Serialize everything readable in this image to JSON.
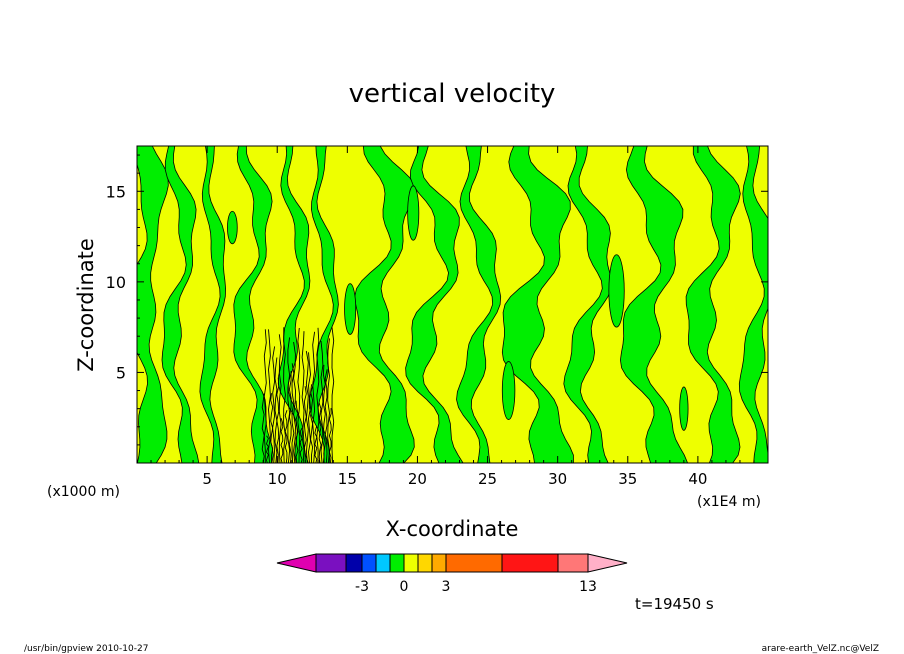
{
  "chart_data": {
    "type": "heatmap",
    "title": "vertical velocity",
    "xlabel": "X-coordinate",
    "ylabel": "Z-coordinate",
    "x_unit_left": "(x1000 m)",
    "x_unit_right": "(x1E4 m)",
    "x_ticks": [
      "5",
      "10",
      "15",
      "20",
      "25",
      "30",
      "35",
      "40"
    ],
    "x_tick_values": [
      5,
      10,
      15,
      20,
      25,
      30,
      35,
      40
    ],
    "y_ticks": [
      "5",
      "10",
      "15"
    ],
    "y_tick_values": [
      5,
      10,
      15
    ],
    "xlim": [
      0,
      45
    ],
    "ylim": [
      0,
      17.5
    ],
    "dominant_colors": {
      "positive": "#eeff00",
      "negative": "#00ee00",
      "contour": "#000000"
    },
    "colorbar": {
      "segments": [
        "#e000b0",
        "#7a10c0",
        "#0000aa",
        "#0050ff",
        "#00c8ff",
        "#00ee00",
        "#eeff00",
        "#ffd700",
        "#ffaa00",
        "#ff6a00",
        "#ff1515",
        "#ff7777",
        "#ffb0c8"
      ],
      "labels": [
        "-3",
        "0",
        "3",
        "13"
      ],
      "label_values": [
        -3,
        0,
        3,
        13
      ]
    },
    "time_label": "t=19450 s"
  },
  "footer": {
    "left": "/usr/bin/gpview   2010-10-27",
    "right": "arare-earth_VelZ.nc@VelZ"
  }
}
